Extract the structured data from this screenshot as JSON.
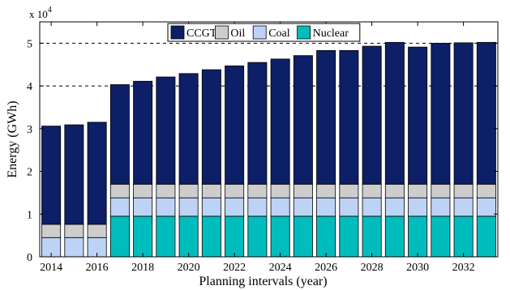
{
  "chart_data": {
    "type": "bar",
    "stacked": true,
    "xlabel": "Planning intervals (year)",
    "ylabel": "Energy (GWh)",
    "y_multiplier": {
      "base": "x 10",
      "exponent": "4"
    },
    "ylim": [
      0,
      55000
    ],
    "y_ticks": [
      0,
      10000,
      20000,
      30000,
      40000,
      50000
    ],
    "y_tick_labels": [
      "0",
      "1",
      "2",
      "3",
      "4",
      "5"
    ],
    "dashed_gridlines_at": [
      40000,
      50000
    ],
    "legend_position": "top-center",
    "categories": [
      "2014",
      "2015",
      "2016",
      "2017",
      "2018",
      "2019",
      "2020",
      "2021",
      "2022",
      "2023",
      "2024",
      "2025",
      "2026",
      "2027",
      "2028",
      "2029",
      "2030",
      "2031",
      "2032",
      "2033"
    ],
    "x_tick_labels": [
      "2014",
      "2016",
      "2018",
      "2020",
      "2022",
      "2024",
      "2026",
      "2028",
      "2030",
      "2032"
    ],
    "series": [
      {
        "name": "Nuclear",
        "color": "#00bdbd",
        "values": [
          0,
          0,
          0,
          9500,
          9500,
          9500,
          9500,
          9500,
          9500,
          9500,
          9500,
          9500,
          9500,
          9500,
          9500,
          9500,
          9500,
          9500,
          9500,
          9500
        ]
      },
      {
        "name": "Coal",
        "color": "#bcd3f5",
        "values": [
          4500,
          4500,
          4500,
          4300,
          4300,
          4300,
          4300,
          4300,
          4300,
          4300,
          4300,
          4300,
          4300,
          4300,
          4300,
          4300,
          4300,
          4300,
          4300,
          4300
        ]
      },
      {
        "name": "Oil",
        "color": "#cdcdcd",
        "values": [
          3100,
          3100,
          3100,
          3200,
          3200,
          3200,
          3200,
          3200,
          3200,
          3200,
          3200,
          3200,
          3200,
          3200,
          3200,
          3200,
          3200,
          3200,
          3200,
          3200
        ]
      },
      {
        "name": "CCGT",
        "color": "#0d1f66",
        "values": [
          23000,
          23300,
          23900,
          23300,
          24100,
          25100,
          25900,
          26800,
          27700,
          28500,
          29300,
          30100,
          31300,
          31300,
          32300,
          33200,
          32100,
          33000,
          33100,
          33200
        ]
      }
    ],
    "legend_order": [
      "CCGT",
      "Oil",
      "Coal",
      "Nuclear"
    ]
  }
}
